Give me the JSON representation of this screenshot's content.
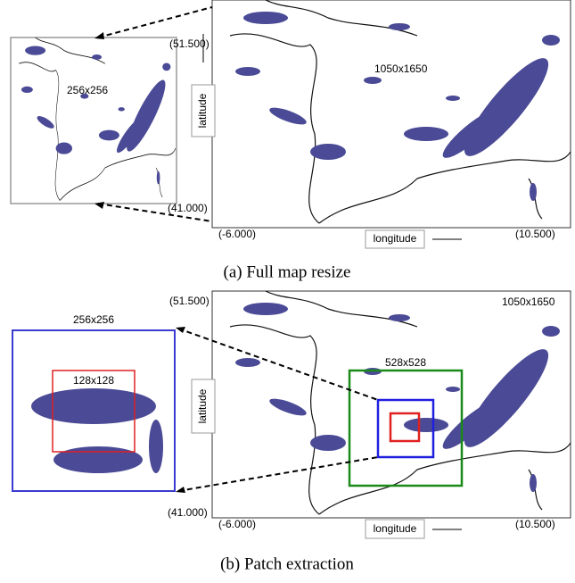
{
  "panel_a": {
    "north": "(51.500)",
    "south": "(41.000)",
    "west": "(-6.000)",
    "east": "(10.500)",
    "latitude": "latitude",
    "longitude": "longitude",
    "full_size": "1050x1650",
    "inset_size": "256x256",
    "caption": "(a) Full map resize"
  },
  "panel_b": {
    "north": "(51.500)",
    "south": "(41.000)",
    "west": "(-6.000)",
    "east": "(10.500)",
    "latitude": "latitude",
    "longitude": "longitude",
    "full_size": "1050x1650",
    "patch_size": "528x528",
    "inset_size": "256x256",
    "crop_size": "128x128",
    "caption": "(b) Patch extraction"
  }
}
